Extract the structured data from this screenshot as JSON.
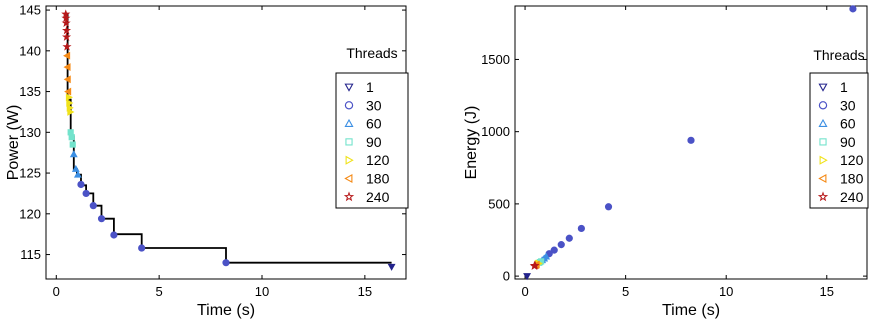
{
  "colors": {
    "t1": "#23238c",
    "t30": "#4b52c6",
    "t60": "#3c8fe3",
    "t90": "#73e3cc",
    "t120": "#f0e21a",
    "t180": "#f58a16",
    "t240": "#b7191a",
    "main": "#3b3bb4",
    "step": "#000000"
  },
  "chart_data": [
    {
      "type": "scatter",
      "xlabel": "Time (s)",
      "ylabel": "Power (W)",
      "xlim": [
        -0.5,
        17
      ],
      "ylim": [
        112,
        145.5
      ],
      "xticks": [
        "0",
        "5",
        "10",
        "15"
      ],
      "xtick_values": [
        0,
        5,
        10,
        15
      ],
      "yticks": [
        "115",
        "120",
        "125",
        "130",
        "135",
        "140",
        "145"
      ],
      "ytick_values": [
        115,
        120,
        125,
        130,
        135,
        140,
        145
      ],
      "legend_title": "Threads",
      "legend_position": "right",
      "legend": [
        "1",
        "30",
        "60",
        "90",
        "120",
        "180",
        "240"
      ],
      "step_line": {
        "x": [
          0.45,
          0.55,
          0.7,
          0.85,
          1.0,
          1.2,
          1.45,
          1.8,
          2.2,
          2.8,
          4.15,
          8.25,
          16.3
        ],
        "y": [
          144.5,
          134,
          129.5,
          125.5,
          124.8,
          123.5,
          122.5,
          121.0,
          119.4,
          117.5,
          115.8,
          114.0,
          114.0
        ]
      },
      "series": [
        {
          "name": "1",
          "marker": "tri-down",
          "x": [
            16.3
          ],
          "y": [
            113.5
          ]
        },
        {
          "name": "30",
          "marker": "circle",
          "x": [
            8.25,
            4.15,
            2.8,
            2.2,
            1.8,
            1.45,
            1.2
          ],
          "y": [
            114.0,
            115.8,
            117.4,
            119.4,
            121.0,
            122.5,
            123.6
          ]
        },
        {
          "name": "60",
          "marker": "tri-up",
          "x": [
            1.05,
            0.95,
            0.85
          ],
          "y": [
            124.8,
            125.5,
            127.3
          ]
        },
        {
          "name": "90",
          "marker": "square",
          "x": [
            0.8,
            0.75,
            0.7
          ],
          "y": [
            128.5,
            129.4,
            130.0
          ]
        },
        {
          "name": "120",
          "marker": "tri-right",
          "x": [
            0.68,
            0.65,
            0.63,
            0.61
          ],
          "y": [
            132.5,
            133.0,
            133.6,
            134.3
          ]
        },
        {
          "name": "180",
          "marker": "tri-left",
          "x": [
            0.58,
            0.56,
            0.55,
            0.53
          ],
          "y": [
            135.0,
            136.5,
            138.0,
            139.4
          ]
        },
        {
          "name": "240",
          "marker": "star",
          "x": [
            0.52,
            0.5,
            0.5,
            0.48,
            0.47,
            0.46
          ],
          "y": [
            140.5,
            141.7,
            142.5,
            143.4,
            144.0,
            144.5
          ]
        }
      ]
    },
    {
      "type": "scatter",
      "xlabel": "Time (s)",
      "ylabel": "Energy (J)",
      "xlim": [
        -0.5,
        17
      ],
      "ylim": [
        -20,
        1870
      ],
      "xticks": [
        "0",
        "5",
        "10",
        "15"
      ],
      "xtick_values": [
        0,
        5,
        10,
        15
      ],
      "yticks": [
        "0",
        "500",
        "1000",
        "1500"
      ],
      "ytick_values": [
        0,
        500,
        1000,
        1500
      ],
      "legend_title": "Threads",
      "legend_position": "right",
      "legend": [
        "1",
        "30",
        "60",
        "90",
        "120",
        "180",
        "240"
      ],
      "series": [
        {
          "name": "1",
          "marker": "tri-down",
          "x": [
            0.1
          ],
          "y": [
            0
          ]
        },
        {
          "name": "30",
          "marker": "circle",
          "x": [
            16.3,
            8.25,
            4.15,
            2.8,
            2.2,
            1.8,
            1.45,
            1.2
          ],
          "y": [
            1850,
            940,
            480,
            330,
            262,
            218,
            180,
            155
          ]
        },
        {
          "name": "60",
          "marker": "tri-up",
          "x": [
            1.05,
            0.95,
            0.85
          ],
          "y": [
            135,
            122,
            110
          ]
        },
        {
          "name": "90",
          "marker": "square",
          "x": [
            0.8,
            0.75,
            0.7
          ],
          "y": [
            102,
            97,
            92
          ]
        },
        {
          "name": "120",
          "marker": "tri-right",
          "x": [
            0.68,
            0.65,
            0.62
          ],
          "y": [
            88,
            85,
            83
          ]
        },
        {
          "name": "180",
          "marker": "tri-left",
          "x": [
            0.58,
            0.55,
            0.53
          ],
          "y": [
            80,
            78,
            76
          ]
        },
        {
          "name": "240",
          "marker": "star",
          "x": [
            0.5,
            0.48,
            0.46
          ],
          "y": [
            74,
            72,
            70
          ]
        }
      ]
    }
  ]
}
